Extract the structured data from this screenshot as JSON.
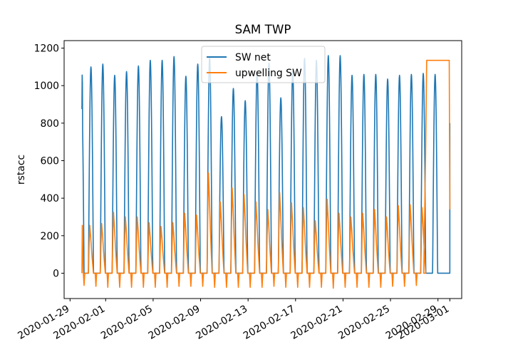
{
  "chart_data": {
    "type": "line",
    "title": "SAM TWP",
    "xlabel": "",
    "ylabel": "rstacc",
    "x_range": [
      "2020-01-28T12:00",
      "2020-03-02T00:00"
    ],
    "ylim": [
      -135,
      1240
    ],
    "yticks": [
      0,
      200,
      400,
      600,
      800,
      1000,
      1200
    ],
    "xtick_labels": [
      "2020-01-29",
      "2020-02-01",
      "2020-02-05",
      "2020-02-09",
      "2020-02-13",
      "2020-02-17",
      "2020-02-21",
      "2020-02-25",
      "2020-02-29",
      "2020-03-01"
    ],
    "xtick_dates": [
      "2020-01-29",
      "2020-02-01",
      "2020-02-05",
      "2020-02-09",
      "2020-02-13",
      "2020-02-17",
      "2020-02-21",
      "2020-02-25",
      "2020-02-29",
      "2020-03-01"
    ],
    "legend": {
      "placement": "upper center"
    },
    "grid": false,
    "series": [
      {
        "name": "SW net",
        "color": "#1f77b4",
        "start_date": "2020-01-30",
        "start_value": 875,
        "end_date": "2020-03-01",
        "end_value": 800,
        "daily_peaks": [
          1100,
          1115,
          1055,
          1075,
          1105,
          1135,
          1135,
          1155,
          1050,
          1115,
          1150,
          835,
          985,
          920,
          1075,
          1120,
          935,
          1075,
          1145,
          1135,
          1160,
          1160,
          1055,
          1060,
          1060,
          1035,
          1055,
          1060,
          1065,
          1060
        ]
      },
      {
        "name": "upwelling SW",
        "color": "#ff7f0e",
        "start_date": "2020-01-30",
        "start_value": 255,
        "end_date": "2020-03-01",
        "end_value": 340,
        "plateau_value": 1135,
        "daily_peaks": [
          255,
          265,
          325,
          300,
          300,
          270,
          250,
          270,
          320,
          310,
          535,
          380,
          455,
          420,
          380,
          340,
          430,
          375,
          350,
          280,
          395,
          320,
          300,
          320,
          340,
          300,
          360,
          365,
          350,
          1135
        ],
        "daily_minimums": [
          -65,
          -70,
          -75,
          -75,
          -75,
          -75,
          -75,
          -75,
          -70,
          -70,
          -70,
          -75,
          -75,
          -75,
          -75,
          -75,
          -70,
          -75,
          -75,
          -75,
          -75,
          -80,
          -75,
          -75,
          -75,
          -75,
          -70,
          -70,
          -65,
          -10
        ]
      }
    ]
  }
}
